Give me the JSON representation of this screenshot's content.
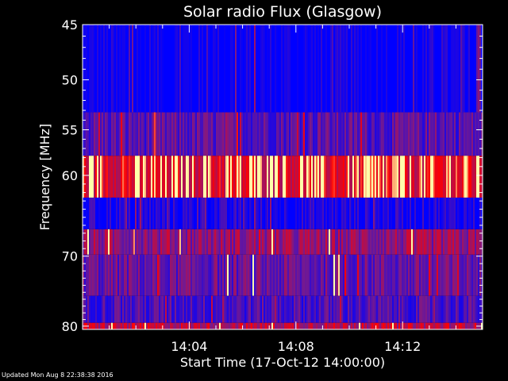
{
  "chart_data": {
    "type": "heatmap",
    "title": "Solar radio Flux (Glasgow)",
    "xlabel": "Start Time (17-Oct-12 14:00:00)",
    "ylabel": "Frequency [MHz]",
    "x_range_minutes": [
      0,
      15
    ],
    "x_ticks": [
      {
        "minute": 4,
        "label": "14:04"
      },
      {
        "minute": 8,
        "label": "14:08"
      },
      {
        "minute": 12,
        "label": "14:12"
      }
    ],
    "y_range_mhz": [
      45,
      80.5
    ],
    "y_ticks": [
      45,
      50,
      55,
      60,
      70,
      80
    ],
    "bands_mhz": [
      {
        "from": 45.0,
        "to": 53.2,
        "intensity": 0.0
      },
      {
        "from": 53.2,
        "to": 57.8,
        "intensity": 0.35
      },
      {
        "from": 57.8,
        "to": 62.6,
        "intensity": 0.85
      },
      {
        "from": 62.6,
        "to": 66.5,
        "intensity": 0.1
      },
      {
        "from": 66.5,
        "to": 69.8,
        "intensity": 0.55
      },
      {
        "from": 69.8,
        "to": 75.5,
        "intensity": 0.4
      },
      {
        "from": 75.5,
        "to": 79.5,
        "intensity": 0.3
      },
      {
        "from": 79.5,
        "to": 80.5,
        "intensity": 0.7
      }
    ],
    "colors": {
      "low": "#0000ff",
      "mid": "#7a1a8a",
      "high": "#ff0000",
      "peak": "#ffffaa",
      "axis": "#ffffff"
    }
  },
  "footer": "Updated Mon Aug  8 22:38:38 2016"
}
